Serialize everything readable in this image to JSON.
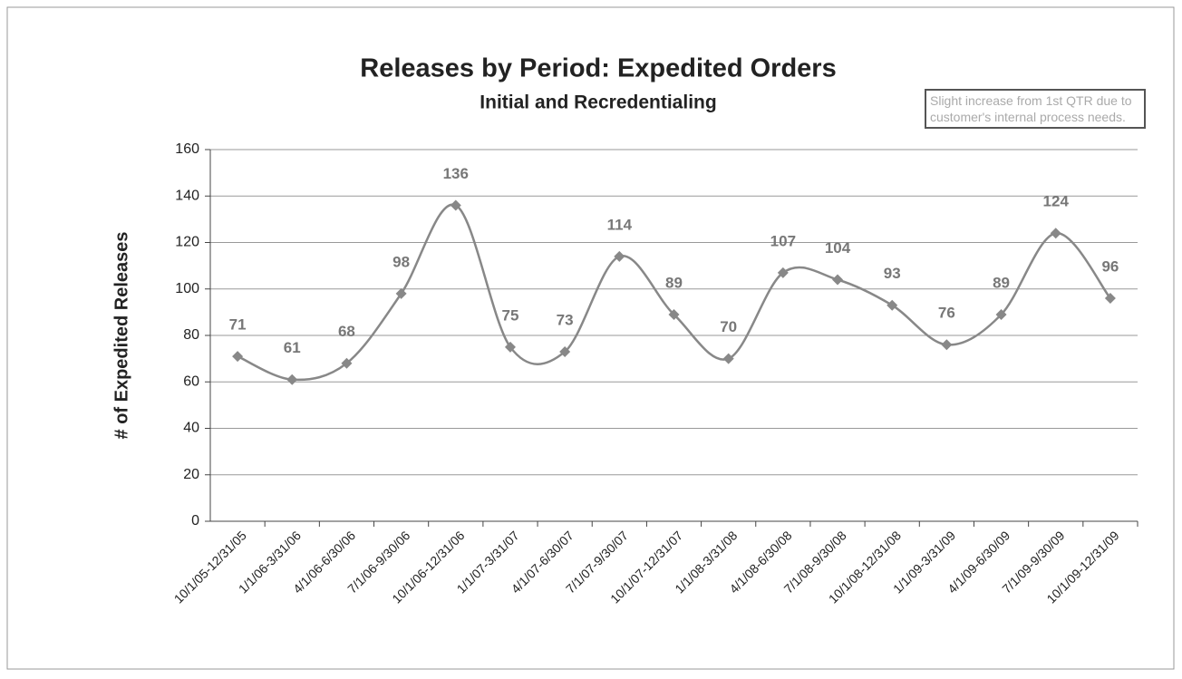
{
  "chart_data": {
    "type": "line",
    "title": "Releases by Period:  Expedited Orders",
    "subtitle": "Initial and Recredentialing",
    "y_label": "# of Expedited Releases",
    "annotation": "Slight increase from 1st QTR due to customer's internal process needs.",
    "categories": [
      "10/1/05-12/31/05",
      "1/1/06-3/31/06",
      "4/1/06-6/30/06",
      "7/1/06-9/30/06",
      "10/1/06-12/31/06",
      "1/1/07-3/31/07",
      "4/1/07-6/30/07",
      "7/1/07-9/30/07",
      "10/1/07-12/31/07",
      "1/1/08-3/31/08",
      "4/1/08-6/30/08",
      "7/1/08-9/30/08",
      "10/1/08-12/31/08",
      "1/1/09-3/31/09",
      "4/1/09-6/30/09",
      "7/1/09-9/30/09",
      "10/1/09-12/31/09"
    ],
    "values": [
      71,
      61,
      68,
      98,
      136,
      75,
      73,
      114,
      89,
      70,
      107,
      104,
      93,
      76,
      89,
      124,
      96
    ],
    "color": "#888888",
    "ylim": [
      0,
      160
    ],
    "yticks": [
      0,
      20,
      40,
      60,
      80,
      100,
      120,
      140,
      160
    ],
    "grid": true
  }
}
